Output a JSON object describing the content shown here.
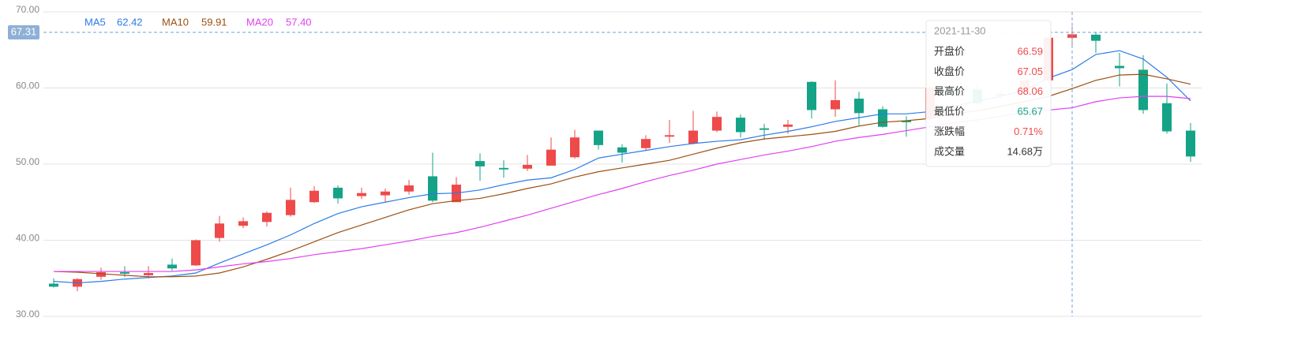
{
  "chart_data": {
    "type": "candlestick",
    "ylim": [
      30,
      70
    ],
    "yticks": [
      {
        "value": 30,
        "label": "30.00"
      },
      {
        "value": 40,
        "label": "40.00"
      },
      {
        "value": 50,
        "label": "50.00"
      },
      {
        "value": 60,
        "label": "60.00"
      },
      {
        "value": 70,
        "label": "70.00"
      }
    ],
    "grid": true,
    "up_color": "#ee4a4a",
    "down_color": "#14a386",
    "candles": {
      "open": [
        34.3,
        33.9,
        35.2,
        35.8,
        35.4,
        36.8,
        36.7,
        40.3,
        41.9,
        42.4,
        43.3,
        45.0,
        46.9,
        45.8,
        45.9,
        46.4,
        48.4,
        45.0,
        50.4,
        49.5,
        49.4,
        49.8,
        50.9,
        54.4,
        52.2,
        52.1,
        53.6,
        52.7,
        54.4,
        56.1,
        54.7,
        54.9,
        60.8,
        57.2,
        58.6,
        57.2,
        55.7,
        56.0,
        59.8,
        59.8,
        59.0,
        59.5,
        61.0,
        66.59,
        67.0,
        62.9,
        62.4,
        58.0,
        54.4
      ],
      "close": [
        33.9,
        34.9,
        35.8,
        35.6,
        35.7,
        36.3,
        40.0,
        42.2,
        42.5,
        43.6,
        45.3,
        46.5,
        45.5,
        46.2,
        46.4,
        47.2,
        45.2,
        47.3,
        49.7,
        49.3,
        49.9,
        51.9,
        53.5,
        52.5,
        51.5,
        53.3,
        53.8,
        54.4,
        56.2,
        54.2,
        54.5,
        55.2,
        57.1,
        58.4,
        56.7,
        54.9,
        55.5,
        60.0,
        59.3,
        58.0,
        59.2,
        61.0,
        66.6,
        67.05,
        66.2,
        62.6,
        57.1,
        54.3,
        51.0
      ],
      "high": [
        35.0,
        35.0,
        36.4,
        36.6,
        36.6,
        37.6,
        40.1,
        43.2,
        43.0,
        43.8,
        46.9,
        47.1,
        47.2,
        46.9,
        46.8,
        47.9,
        51.5,
        48.3,
        51.4,
        50.5,
        51.2,
        53.5,
        54.5,
        54.4,
        52.6,
        53.8,
        55.8,
        57.0,
        56.9,
        56.5,
        55.3,
        55.8,
        60.9,
        61.0,
        59.5,
        57.6,
        56.3,
        60.3,
        60.2,
        60.5,
        59.6,
        61.4,
        66.7,
        68.06,
        67.3,
        64.6,
        64.3,
        60.6,
        55.4
      ],
      "low": [
        33.8,
        33.3,
        34.8,
        35.2,
        35.0,
        36.0,
        36.6,
        39.8,
        41.6,
        41.8,
        43.1,
        44.9,
        44.8,
        45.4,
        45.0,
        46.0,
        45.0,
        45.0,
        47.8,
        48.2,
        49.1,
        49.8,
        50.7,
        51.9,
        50.2,
        51.8,
        52.8,
        52.6,
        54.2,
        53.5,
        53.2,
        54.0,
        56.0,
        56.2,
        55.1,
        54.8,
        53.6,
        55.7,
        58.9,
        57.8,
        58.6,
        59.1,
        60.5,
        65.67,
        64.6,
        60.2,
        56.6,
        54.0,
        50.3
      ]
    },
    "series": [
      {
        "name": "MA5",
        "color": "#2a7be8",
        "values": [
          34.6,
          34.4,
          34.6,
          34.9,
          35.1,
          35.3,
          35.7,
          37.0,
          38.2,
          39.4,
          40.7,
          42.2,
          43.5,
          44.4,
          45.0,
          45.6,
          46.1,
          46.2,
          46.6,
          47.3,
          47.9,
          48.2,
          49.3,
          50.8,
          51.3,
          51.8,
          52.3,
          52.7,
          53.0,
          53.2,
          53.8,
          54.3,
          54.9,
          55.6,
          56.1,
          56.6,
          56.6,
          56.9,
          57.6,
          58.3,
          58.9,
          59.7,
          61.3,
          62.42,
          64.4,
          64.9,
          63.8,
          61.4,
          58.3
        ]
      },
      {
        "name": "MA10",
        "color": "#9c5012",
        "values": [
          35.9,
          35.8,
          35.6,
          35.4,
          35.2,
          35.2,
          35.3,
          35.7,
          36.5,
          37.5,
          38.6,
          39.8,
          41.0,
          42.0,
          43.0,
          44.0,
          44.8,
          45.2,
          45.5,
          46.1,
          46.8,
          47.4,
          48.3,
          49.0,
          49.5,
          50.0,
          50.5,
          51.3,
          52.1,
          52.8,
          53.3,
          53.6,
          53.9,
          54.3,
          55.0,
          55.5,
          55.7,
          56.0,
          56.6,
          57.0,
          57.6,
          58.2,
          58.9,
          59.91,
          61.0,
          61.7,
          61.8,
          61.2,
          60.5
        ]
      },
      {
        "name": "MA20",
        "color": "#e040f0",
        "values": [
          35.9,
          35.9,
          35.9,
          35.9,
          35.9,
          35.9,
          36.1,
          36.5,
          36.9,
          37.2,
          37.6,
          38.1,
          38.5,
          38.9,
          39.4,
          39.9,
          40.5,
          41.0,
          41.7,
          42.5,
          43.3,
          44.2,
          45.1,
          46.0,
          46.8,
          47.7,
          48.5,
          49.2,
          50.0,
          50.6,
          51.2,
          51.7,
          52.3,
          53.0,
          53.5,
          53.9,
          54.4,
          54.9,
          55.4,
          55.8,
          56.3,
          56.7,
          57.1,
          57.4,
          58.2,
          58.7,
          58.9,
          58.9,
          58.6
        ]
      }
    ],
    "crosshair": {
      "index": 43,
      "price": 67.31,
      "date": "2021-11-30",
      "legend_labels": [
        "62.42",
        "59.91",
        "57.40"
      ],
      "tooltip_labels": [
        "开盘价",
        "收盘价",
        "最高价",
        "最低价",
        "涨跌幅",
        "成交量"
      ],
      "change": "0.71%",
      "volume": "14.68万"
    }
  }
}
